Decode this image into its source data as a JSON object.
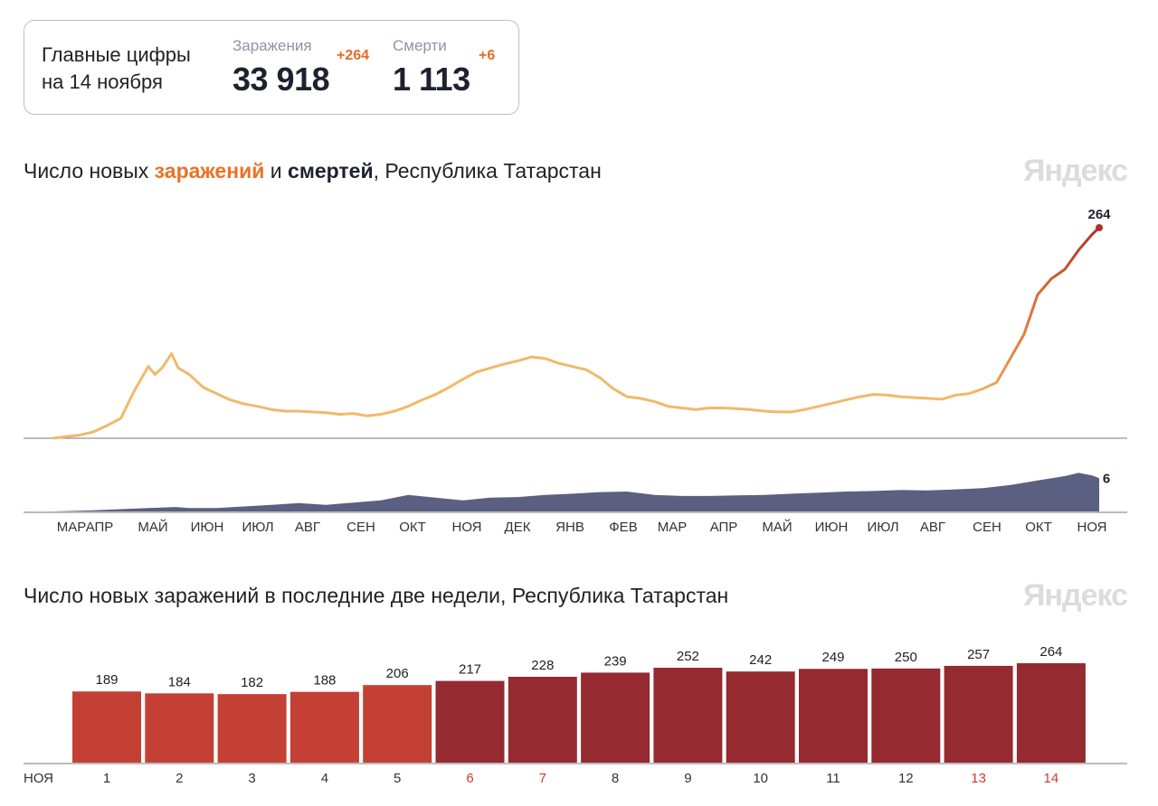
{
  "summary": {
    "title_line1": "Главные цифры",
    "title_line2": "на 14 ноября",
    "infections_label": "Заражения",
    "infections_value": "33 918",
    "infections_delta": "+264",
    "deaths_label": "Смерти",
    "deaths_value": "1 113",
    "deaths_delta": "+6"
  },
  "brand": "Яндекс",
  "colors": {
    "infections_line_start": "#f0b96a",
    "infections_line_end": "#b03028",
    "deaths_area": "#5b5f82",
    "bar_light": "#c44034",
    "bar_dark": "#952a31",
    "weekend_label": "#d23a2e",
    "delta": "#e8692a"
  },
  "chart_data": [
    {
      "type": "line",
      "title_parts": {
        "p1": "Число новых ",
        "p2": "заражений",
        "p3": " и ",
        "p4": "смертей",
        "p5": ", Республика Татарстан"
      },
      "x_tick_labels": [
        "МАР",
        "АПР",
        "МАЙ",
        "ИЮН",
        "ИЮЛ",
        "АВГ",
        "СЕН",
        "ОКТ",
        "НОЯ",
        "ДЕК",
        "ЯНВ",
        "ФЕВ",
        "МАР",
        "АПР",
        "МАЙ",
        "ИЮН",
        "ИЮЛ",
        "АВГ",
        "СЕН",
        "ОКТ",
        "НОЯ"
      ],
      "series": [
        {
          "name": "заражений",
          "last_label": "264",
          "points": [
            [
              0,
              0
            ],
            [
              1,
              2
            ],
            [
              2,
              4
            ],
            [
              3,
              8
            ],
            [
              4,
              16
            ],
            [
              5,
              25
            ],
            [
              6,
              60
            ],
            [
              7,
              90
            ],
            [
              7.5,
              80
            ],
            [
              8,
              88
            ],
            [
              8.7,
              106
            ],
            [
              9.2,
              88
            ],
            [
              10,
              80
            ],
            [
              11,
              64
            ],
            [
              12,
              56
            ],
            [
              13,
              48
            ],
            [
              14,
              43
            ],
            [
              15,
              40
            ],
            [
              16,
              36
            ],
            [
              17,
              34
            ],
            [
              18,
              34
            ],
            [
              19,
              33
            ],
            [
              20,
              32
            ],
            [
              21,
              30
            ],
            [
              22,
              31
            ],
            [
              23,
              28
            ],
            [
              24,
              30
            ],
            [
              25,
              34
            ],
            [
              26,
              40
            ],
            [
              27,
              48
            ],
            [
              28,
              55
            ],
            [
              29,
              64
            ],
            [
              30,
              74
            ],
            [
              31,
              83
            ],
            [
              32,
              88
            ],
            [
              33,
              93
            ],
            [
              34,
              97
            ],
            [
              35,
              102
            ],
            [
              36,
              100
            ],
            [
              37,
              94
            ],
            [
              38,
              90
            ],
            [
              39,
              86
            ],
            [
              40,
              76
            ],
            [
              41,
              62
            ],
            [
              42,
              52
            ],
            [
              43,
              50
            ],
            [
              44,
              46
            ],
            [
              45,
              40
            ],
            [
              46,
              38
            ],
            [
              47,
              36
            ],
            [
              48,
              38
            ],
            [
              49,
              38
            ],
            [
              50,
              37
            ],
            [
              51,
              36
            ],
            [
              52,
              34
            ],
            [
              53,
              33
            ],
            [
              54,
              33
            ],
            [
              55,
              36
            ],
            [
              56,
              40
            ],
            [
              57,
              44
            ],
            [
              58,
              48
            ],
            [
              59,
              52
            ],
            [
              60,
              55
            ],
            [
              61,
              54
            ],
            [
              62,
              52
            ],
            [
              63,
              51
            ],
            [
              64,
              50
            ],
            [
              65,
              49
            ],
            [
              66,
              54
            ],
            [
              67,
              56
            ],
            [
              68,
              62
            ],
            [
              69,
              70
            ],
            [
              70,
              100
            ],
            [
              71,
              130
            ],
            [
              72,
              180
            ],
            [
              73,
              200
            ],
            [
              74,
              212
            ],
            [
              75,
              236
            ],
            [
              76,
              256
            ],
            [
              76.5,
              264
            ]
          ]
        },
        {
          "name": "смертей",
          "last_label": "6",
          "points": [
            [
              0,
              0
            ],
            [
              3,
              0.2
            ],
            [
              6,
              0.5
            ],
            [
              7,
              0.6
            ],
            [
              9,
              0.8
            ],
            [
              10,
              0.6
            ],
            [
              12,
              0.6
            ],
            [
              14,
              0.9
            ],
            [
              16,
              1.2
            ],
            [
              18,
              1.5
            ],
            [
              20,
              1.2
            ],
            [
              22,
              1.6
            ],
            [
              24,
              2
            ],
            [
              26,
              3
            ],
            [
              28,
              2.5
            ],
            [
              30,
              2
            ],
            [
              32,
              2.5
            ],
            [
              34,
              2.6
            ],
            [
              36,
              3
            ],
            [
              38,
              3.2
            ],
            [
              40,
              3.5
            ],
            [
              42,
              3.6
            ],
            [
              44,
              3
            ],
            [
              46,
              2.8
            ],
            [
              48,
              2.8
            ],
            [
              50,
              2.9
            ],
            [
              52,
              3
            ],
            [
              54,
              3.2
            ],
            [
              56,
              3.4
            ],
            [
              58,
              3.6
            ],
            [
              60,
              3.7
            ],
            [
              62,
              3.9
            ],
            [
              64,
              3.8
            ],
            [
              66,
              4
            ],
            [
              68,
              4.2
            ],
            [
              70,
              4.8
            ],
            [
              72,
              5.6
            ],
            [
              74,
              6.4
            ],
            [
              75,
              7
            ],
            [
              76,
              6.5
            ],
            [
              76.5,
              6
            ]
          ]
        }
      ]
    },
    {
      "type": "bar",
      "title": "Число новых заражений в последние две недели, Республика Татарстан",
      "xlabel_month": "НОЯ",
      "categories": [
        "1",
        "2",
        "3",
        "4",
        "5",
        "6",
        "7",
        "8",
        "9",
        "10",
        "11",
        "12",
        "13",
        "14"
      ],
      "values": [
        189,
        184,
        182,
        188,
        206,
        217,
        228,
        239,
        252,
        242,
        249,
        250,
        257,
        264
      ],
      "weekend_days": [
        "6",
        "7",
        "13",
        "14"
      ],
      "series_split_after_index": 4
    }
  ]
}
